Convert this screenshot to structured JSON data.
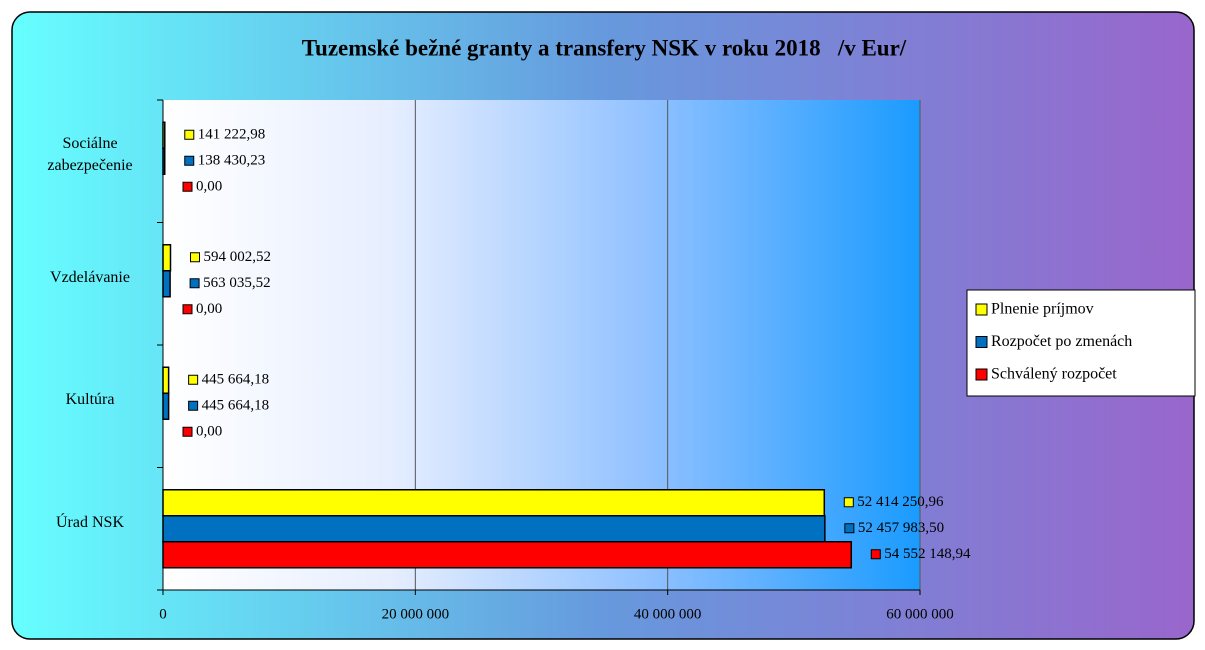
{
  "chart_data": {
    "type": "hbar",
    "title": "Tuzemské bežné granty a transfery NSK v roku 2018   /v Eur/",
    "categories": [
      "Sociálne zabezpečenie",
      "Vzdelávanie",
      "Kultúra",
      "Úrad NSK"
    ],
    "series": [
      {
        "name": "Plnenie príjmov",
        "color": "#ffff00",
        "values": [
          141222.98,
          594002.52,
          445664.18,
          52414250.96
        ],
        "value_labels": [
          "141 222,98",
          "594 002,52",
          "445 664,18",
          "52 414 250,96"
        ]
      },
      {
        "name": "Rozpočet po zmenách",
        "color": "#0070c0",
        "values": [
          138430.23,
          563035.52,
          445664.18,
          52457983.5
        ],
        "value_labels": [
          "138 430,23",
          "563 035,52",
          "445 664,18",
          "52 457 983,50"
        ]
      },
      {
        "name": "Schválený rozpočet",
        "color": "#ff0000",
        "values": [
          0,
          0,
          0,
          54552148.94
        ],
        "value_labels": [
          "0,00",
          "0,00",
          "0,00",
          "54 552 148,94"
        ]
      }
    ],
    "xlim": [
      0,
      60000000
    ],
    "xticks": [
      0,
      {
        "value": 20000000,
        "label": "20 000 000"
      },
      {
        "value": 40000000,
        "label": "40 000 000"
      },
      {
        "value": 60000000,
        "label": "60 000 000"
      }
    ],
    "grid": true,
    "legend": "right"
  }
}
